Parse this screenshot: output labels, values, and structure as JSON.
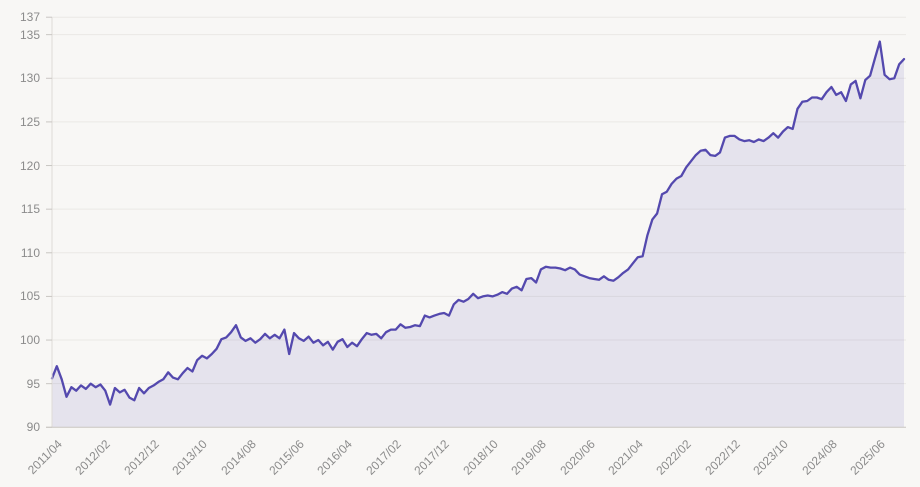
{
  "chart_data": {
    "type": "area",
    "x": [
      "2011/04",
      "2011/05",
      "2011/06",
      "2011/07",
      "2011/08",
      "2011/09",
      "2011/10",
      "2011/11",
      "2011/12",
      "2012/01",
      "2012/02",
      "2012/03",
      "2012/04",
      "2012/05",
      "2012/06",
      "2012/07",
      "2012/08",
      "2012/09",
      "2012/10",
      "2012/11",
      "2012/12",
      "2013/01",
      "2013/02",
      "2013/03",
      "2013/04",
      "2013/05",
      "2013/06",
      "2013/07",
      "2013/08",
      "2013/09",
      "2013/10",
      "2013/11",
      "2013/12",
      "2014/01",
      "2014/02",
      "2014/03",
      "2014/04",
      "2014/05",
      "2014/06",
      "2014/07",
      "2014/08",
      "2014/09",
      "2014/10",
      "2014/11",
      "2014/12",
      "2015/01",
      "2015/02",
      "2015/03",
      "2015/04",
      "2015/05",
      "2015/06",
      "2015/07",
      "2015/08",
      "2015/09",
      "2015/10",
      "2015/11",
      "2015/12",
      "2016/01",
      "2016/02",
      "2016/03",
      "2016/04",
      "2016/05",
      "2016/06",
      "2016/07",
      "2016/08",
      "2016/09",
      "2016/10",
      "2016/11",
      "2016/12",
      "2017/01",
      "2017/02",
      "2017/03",
      "2017/04",
      "2017/05",
      "2017/06",
      "2017/07",
      "2017/08",
      "2017/09",
      "2017/10",
      "2017/11",
      "2017/12",
      "2018/01",
      "2018/02",
      "2018/03",
      "2018/04",
      "2018/05",
      "2018/06",
      "2018/07",
      "2018/08",
      "2018/09",
      "2018/10",
      "2018/11",
      "2018/12",
      "2019/01",
      "2019/02",
      "2019/03",
      "2019/04",
      "2019/05",
      "2019/06",
      "2019/07",
      "2019/08",
      "2019/09",
      "2019/10",
      "2019/11",
      "2019/12",
      "2020/01",
      "2020/02",
      "2020/03",
      "2020/04",
      "2020/05",
      "2020/06",
      "2020/07",
      "2020/08",
      "2020/09",
      "2020/10",
      "2020/11",
      "2020/12",
      "2021/01",
      "2021/02",
      "2021/03",
      "2021/04",
      "2021/05",
      "2021/06",
      "2021/07",
      "2021/08",
      "2021/09",
      "2021/10",
      "2021/11",
      "2021/12",
      "2022/01",
      "2022/02",
      "2022/03",
      "2022/04",
      "2022/05",
      "2022/06",
      "2022/07",
      "2022/08",
      "2022/09",
      "2022/10",
      "2022/11",
      "2022/12",
      "2023/01",
      "2023/02",
      "2023/03",
      "2023/04",
      "2023/05",
      "2023/06",
      "2023/07",
      "2023/08",
      "2023/09",
      "2023/10",
      "2023/11",
      "2023/12",
      "2024/01",
      "2024/02",
      "2024/03",
      "2024/04",
      "2024/05",
      "2024/06",
      "2024/07",
      "2024/08",
      "2024/09",
      "2024/10",
      "2024/11",
      "2024/12",
      "2025/01",
      "2025/02",
      "2025/03",
      "2025/04",
      "2025/05",
      "2025/06",
      "2025/07",
      "2025/08",
      "2025/09",
      "2025/10",
      "2025/11",
      "2025/12"
    ],
    "values": [
      95.6,
      97.0,
      95.5,
      93.5,
      94.6,
      94.2,
      94.8,
      94.4,
      95.0,
      94.6,
      94.9,
      94.2,
      92.6,
      94.5,
      94.0,
      94.3,
      93.4,
      93.1,
      94.5,
      93.9,
      94.5,
      94.8,
      95.2,
      95.5,
      96.3,
      95.7,
      95.5,
      96.2,
      96.8,
      96.4,
      97.7,
      98.2,
      97.9,
      98.4,
      99.0,
      100.1,
      100.3,
      100.9,
      101.7,
      100.3,
      99.9,
      100.2,
      99.7,
      100.1,
      100.7,
      100.2,
      100.6,
      100.2,
      101.2,
      98.4,
      100.8,
      100.2,
      99.9,
      100.4,
      99.7,
      100.0,
      99.4,
      99.8,
      98.9,
      99.8,
      100.1,
      99.2,
      99.7,
      99.3,
      100.1,
      100.8,
      100.6,
      100.7,
      100.2,
      100.9,
      101.2,
      101.2,
      101.8,
      101.4,
      101.5,
      101.7,
      101.6,
      102.8,
      102.6,
      102.8,
      103.0,
      103.1,
      102.8,
      104.1,
      104.6,
      104.4,
      104.7,
      105.3,
      104.8,
      105.0,
      105.1,
      105.0,
      105.2,
      105.5,
      105.3,
      105.9,
      106.1,
      105.7,
      107.0,
      107.1,
      106.6,
      108.1,
      108.4,
      108.3,
      108.3,
      108.2,
      108.0,
      108.3,
      108.1,
      107.5,
      107.3,
      107.1,
      107.0,
      106.9,
      107.3,
      106.9,
      106.8,
      107.2,
      107.7,
      108.1,
      108.8,
      109.5,
      109.6,
      112.0,
      113.8,
      114.5,
      116.7,
      117.0,
      117.9,
      118.5,
      118.8,
      119.8,
      120.5,
      121.2,
      121.7,
      121.8,
      121.2,
      121.1,
      121.5,
      123.2,
      123.4,
      123.4,
      123.0,
      122.8,
      122.9,
      122.7,
      123.0,
      122.8,
      123.2,
      123.7,
      123.2,
      123.9,
      124.4,
      124.2,
      126.5,
      127.3,
      127.4,
      127.8,
      127.8,
      127.6,
      128.4,
      129.0,
      128.1,
      128.4,
      127.4,
      129.3,
      129.7,
      127.7,
      129.8,
      130.3,
      132.3,
      134.2,
      130.4,
      129.9,
      130.0,
      131.6,
      132.2
    ],
    "x_tick_labels": [
      "2011/04",
      "2012/02",
      "2012/12",
      "2013/10",
      "2014/08",
      "2015/06",
      "2016/04",
      "2017/02",
      "2017/12",
      "2018/10",
      "2019/08",
      "2020/06",
      "2021/04",
      "2022/02",
      "2022/12",
      "2023/10",
      "2024/08",
      "2025/06"
    ],
    "y_tick_labels": [
      "137",
      "135",
      "130",
      "125",
      "120",
      "115",
      "110",
      "105",
      "100",
      "95",
      "90"
    ],
    "ylim": [
      90,
      137
    ],
    "grid": true,
    "legend": false,
    "colors": {
      "line": "#5449ae",
      "area_fill": "#5448b0",
      "area_fill_opacity": 0.11,
      "gridline": "#eae8e5",
      "axis_line": "#c9c6c2",
      "y_axis_line": "#dedbd7",
      "tick": "#c9c6c2",
      "label": "#8b8b8b",
      "background": "#f8f7f5"
    }
  }
}
